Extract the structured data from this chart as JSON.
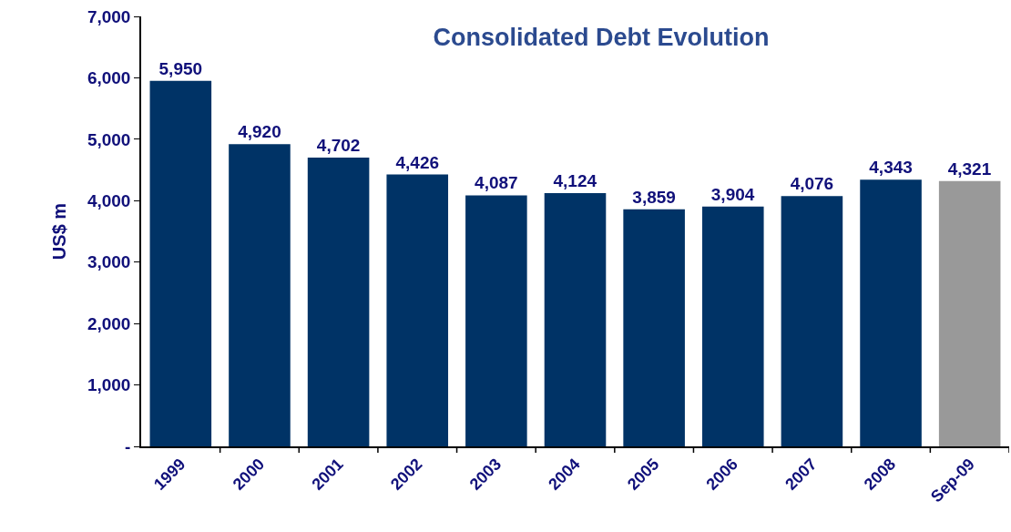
{
  "chart_data": {
    "type": "bar",
    "title": "Consolidated Debt Evolution",
    "ylabel": "US$ m",
    "categories": [
      "1999",
      "2000",
      "2001",
      "2002",
      "2003",
      "2004",
      "2005",
      "2006",
      "2007",
      "2008",
      "Sep-09"
    ],
    "values": [
      5950,
      4920,
      4702,
      4426,
      4087,
      4124,
      3859,
      3904,
      4076,
      4343,
      4321
    ],
    "colors": [
      "#003366",
      "#003366",
      "#003366",
      "#003366",
      "#003366",
      "#003366",
      "#003366",
      "#003366",
      "#003366",
      "#003366",
      "#999999"
    ],
    "ylim": [
      0,
      7000
    ],
    "yticks": [
      {
        "value": 0,
        "label": "-"
      },
      {
        "value": 1000,
        "label": "1,000"
      },
      {
        "value": 2000,
        "label": "2,000"
      },
      {
        "value": 3000,
        "label": "3,000"
      },
      {
        "value": 4000,
        "label": "4,000"
      },
      {
        "value": 5000,
        "label": "5,000"
      },
      {
        "value": 6000,
        "label": "6,000"
      },
      {
        "value": 7000,
        "label": "7,000"
      }
    ],
    "value_labels": [
      "5,950",
      "4,920",
      "4,702",
      "4,426",
      "4,087",
      "4,124",
      "3,859",
      "3,904",
      "4,076",
      "4,343",
      "4,321"
    ],
    "grid": false,
    "legend": false
  }
}
